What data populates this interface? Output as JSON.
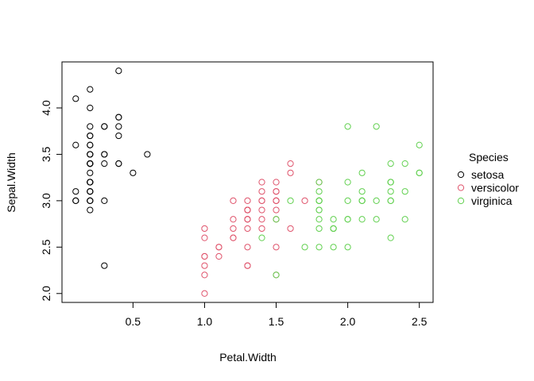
{
  "chart_data": {
    "type": "scatter",
    "title": "",
    "xlabel": "Petal.Width",
    "ylabel": "Sepal.Width",
    "xlim": [
      0.1,
      2.5
    ],
    "ylim": [
      2.0,
      4.4
    ],
    "x_ticks": [
      0.5,
      1.0,
      1.5,
      2.0,
      2.5
    ],
    "x_tick_labels": [
      "0.5",
      "1.0",
      "1.5",
      "2.0",
      "2.5"
    ],
    "y_ticks": [
      2.0,
      2.5,
      3.0,
      3.5,
      4.0
    ],
    "y_tick_labels": [
      "2.0",
      "2.5",
      "3.0",
      "3.5",
      "4.0"
    ],
    "grid": false,
    "legend": {
      "title": "Species",
      "placement": "right"
    },
    "series": [
      {
        "name": "setosa",
        "color": "#000000",
        "x": [
          0.2,
          0.2,
          0.2,
          0.2,
          0.2,
          0.4,
          0.3,
          0.2,
          0.2,
          0.1,
          0.2,
          0.2,
          0.1,
          0.1,
          0.2,
          0.4,
          0.4,
          0.3,
          0.3,
          0.3,
          0.2,
          0.4,
          0.2,
          0.5,
          0.2,
          0.2,
          0.4,
          0.2,
          0.2,
          0.2,
          0.2,
          0.4,
          0.1,
          0.2,
          0.2,
          0.2,
          0.2,
          0.1,
          0.2,
          0.2,
          0.3,
          0.3,
          0.2,
          0.6,
          0.4,
          0.3,
          0.2,
          0.2,
          0.2,
          0.2
        ],
        "y": [
          3.5,
          3.0,
          3.2,
          3.1,
          3.6,
          3.9,
          3.4,
          3.4,
          2.9,
          3.1,
          3.7,
          3.4,
          3.0,
          3.0,
          4.0,
          4.4,
          3.9,
          3.5,
          3.8,
          3.8,
          3.4,
          3.7,
          3.6,
          3.3,
          3.4,
          3.0,
          3.4,
          3.5,
          3.4,
          3.2,
          3.1,
          3.4,
          4.1,
          4.2,
          3.1,
          3.2,
          3.5,
          3.6,
          3.0,
          3.4,
          3.5,
          2.3,
          3.2,
          3.5,
          3.8,
          3.0,
          3.8,
          3.2,
          3.7,
          3.3
        ]
      },
      {
        "name": "versicolor",
        "color": "#DF536B",
        "x": [
          1.4,
          1.5,
          1.5,
          1.3,
          1.5,
          1.3,
          1.6,
          1.0,
          1.3,
          1.4,
          1.0,
          1.5,
          1.0,
          1.4,
          1.3,
          1.4,
          1.5,
          1.0,
          1.5,
          1.1,
          1.8,
          1.3,
          1.5,
          1.2,
          1.3,
          1.4,
          1.4,
          1.7,
          1.5,
          1.0,
          1.1,
          1.0,
          1.2,
          1.6,
          1.5,
          1.6,
          1.5,
          1.3,
          1.3,
          1.3,
          1.2,
          1.4,
          1.2,
          1.0,
          1.3,
          1.2,
          1.3,
          1.3,
          1.1,
          1.3
        ],
        "y": [
          3.2,
          3.2,
          3.1,
          2.3,
          2.8,
          2.8,
          3.3,
          2.4,
          2.9,
          2.7,
          2.0,
          3.0,
          2.2,
          2.9,
          2.9,
          3.1,
          3.0,
          2.7,
          2.2,
          2.5,
          3.2,
          2.8,
          2.5,
          2.8,
          2.9,
          3.0,
          2.8,
          3.0,
          2.9,
          2.6,
          2.4,
          2.4,
          2.7,
          2.7,
          3.0,
          3.4,
          3.1,
          2.3,
          3.0,
          2.5,
          2.6,
          3.0,
          2.6,
          2.3,
          2.7,
          3.0,
          2.9,
          2.9,
          2.5,
          2.8
        ]
      },
      {
        "name": "virginica",
        "color": "#61D04F",
        "x": [
          2.5,
          1.9,
          2.1,
          1.8,
          2.2,
          2.1,
          1.7,
          1.8,
          1.8,
          2.5,
          2.0,
          1.9,
          2.1,
          2.0,
          2.4,
          2.3,
          1.8,
          2.2,
          2.3,
          1.5,
          2.3,
          2.0,
          2.0,
          1.8,
          2.1,
          1.8,
          1.8,
          1.8,
          2.1,
          1.6,
          1.9,
          2.0,
          2.2,
          1.5,
          1.4,
          2.3,
          2.4,
          1.8,
          1.8,
          2.1,
          2.4,
          2.3,
          1.9,
          2.3,
          2.5,
          2.3,
          1.9,
          2.0,
          2.3,
          1.8
        ],
        "y": [
          3.3,
          2.7,
          3.0,
          2.9,
          3.0,
          3.0,
          2.5,
          2.9,
          2.5,
          3.6,
          3.2,
          2.7,
          3.0,
          2.5,
          2.8,
          3.2,
          3.0,
          3.8,
          2.6,
          2.2,
          3.2,
          2.8,
          2.8,
          2.7,
          3.3,
          3.2,
          2.8,
          3.0,
          2.8,
          3.0,
          2.8,
          3.8,
          2.8,
          2.8,
          2.6,
          3.0,
          3.4,
          3.1,
          3.0,
          3.1,
          3.1,
          3.1,
          2.7,
          3.2,
          3.3,
          3.0,
          2.5,
          3.0,
          3.4,
          3.0
        ]
      }
    ]
  }
}
